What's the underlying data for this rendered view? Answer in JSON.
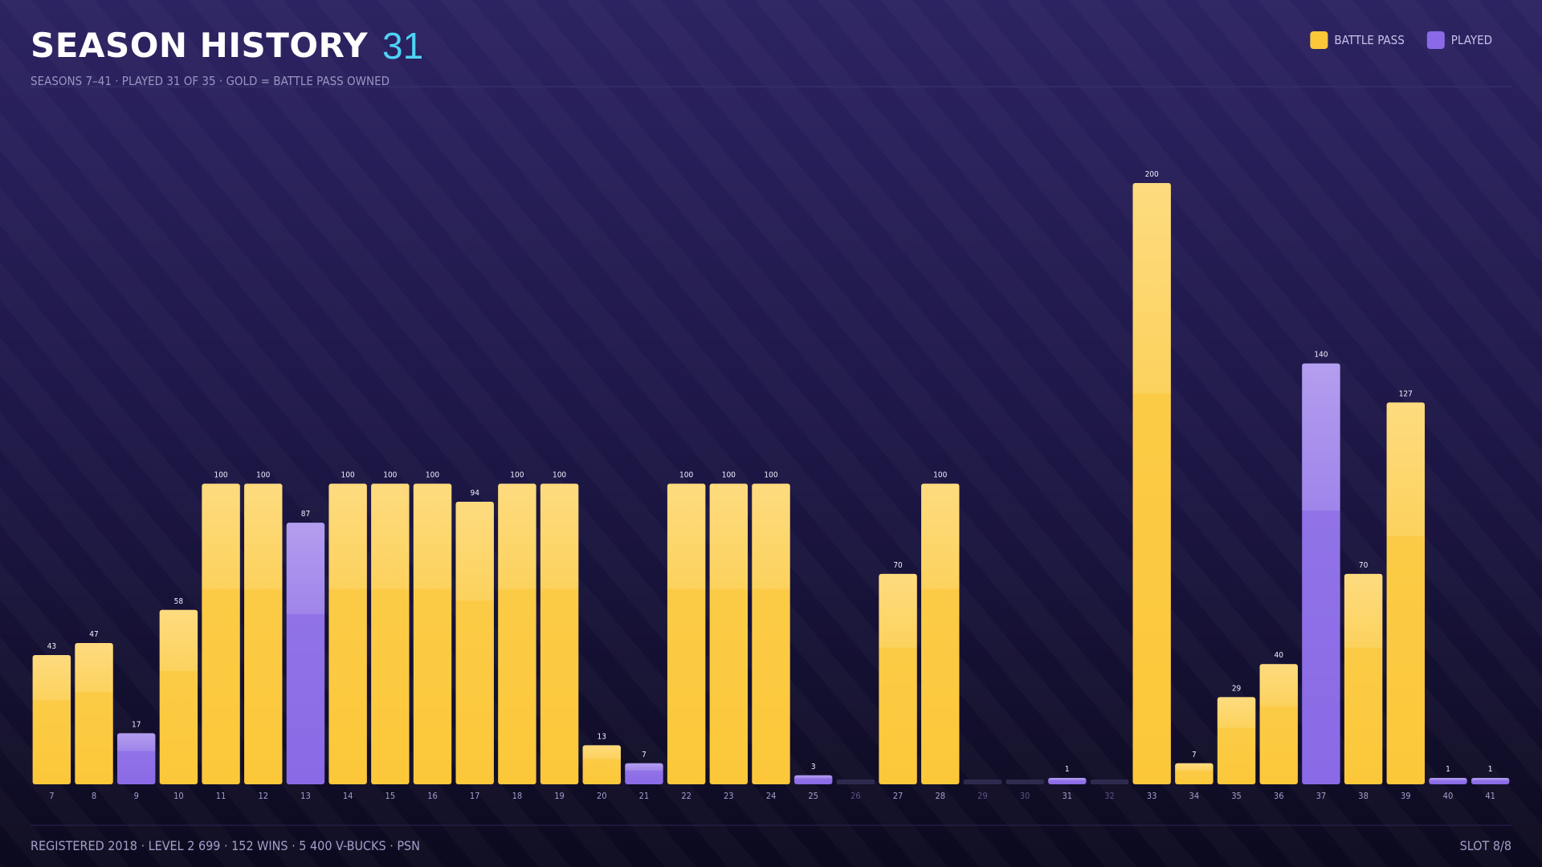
{
  "header": {
    "title": "SEASON HISTORY",
    "count": "31",
    "subtitle": "SEASONS 7–41 · PLAYED 31 OF 35 · GOLD = BATTLE PASS OWNED"
  },
  "chart_data": {
    "type": "bar",
    "categories": [
      "7",
      "8",
      "9",
      "10",
      "11",
      "12",
      "13",
      "14",
      "15",
      "16",
      "17",
      "18",
      "19",
      "20",
      "21",
      "22",
      "23",
      "24",
      "25",
      "26",
      "27",
      "28",
      "29",
      "30",
      "31",
      "32",
      "33",
      "34",
      "35",
      "36",
      "37",
      "38",
      "39",
      "40",
      "41"
    ],
    "series": [
      {
        "name": "BATTLE PASS",
        "color": "#fcc83a",
        "values": [
          43,
          47,
          null,
          58,
          100,
          100,
          null,
          100,
          100,
          100,
          94,
          100,
          100,
          13,
          null,
          100,
          100,
          100,
          null,
          null,
          70,
          100,
          null,
          null,
          null,
          null,
          200,
          7,
          29,
          40,
          null,
          70,
          127,
          null,
          null
        ]
      },
      {
        "name": "PLAYED",
        "color": "#8a6ae6",
        "values": [
          null,
          null,
          17,
          null,
          null,
          null,
          87,
          null,
          null,
          null,
          null,
          null,
          null,
          null,
          7,
          null,
          null,
          null,
          3,
          null,
          null,
          null,
          null,
          null,
          1,
          null,
          null,
          null,
          null,
          null,
          140,
          null,
          null,
          1,
          1
        ]
      }
    ],
    "legend": "top-right"
  },
  "footer": {
    "left": "REGISTERED 2018 · LEVEL 2 699 · 152 WINS · 5 400 V-BUCKS · PSN",
    "right": "SLOT 8/8"
  }
}
